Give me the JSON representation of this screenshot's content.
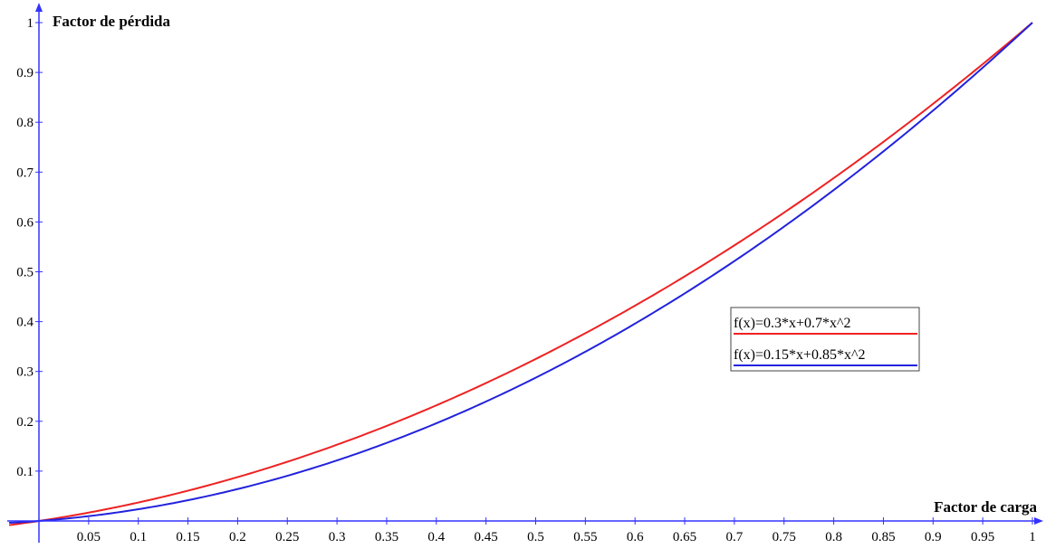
{
  "chart_data": {
    "type": "line",
    "xlabel": "Factor de carga",
    "ylabel": "Factor de pérdida",
    "xlim": [
      0,
      1
    ],
    "ylim": [
      0,
      1
    ],
    "x_ticks": [
      "0.05",
      "0.1",
      "0.15",
      "0.2",
      "0.25",
      "0.3",
      "0.35",
      "0.4",
      "0.45",
      "0.5",
      "0.55",
      "0.6",
      "0.65",
      "0.7",
      "0.75",
      "0.8",
      "0.85",
      "0.9",
      "0.95",
      "1"
    ],
    "y_ticks": [
      "0.1",
      "0.2",
      "0.3",
      "0.4",
      "0.5",
      "0.6",
      "0.7",
      "0.8",
      "0.9",
      "1"
    ],
    "grid": false,
    "legend_position": "center-right",
    "axis_color": "#3333ff",
    "series": [
      {
        "name": "f(x)=0.3*x+0.7*x^2",
        "color": "#ee2222",
        "coefficients": {
          "linear": 0.3,
          "quadratic": 0.7
        },
        "x": [
          0,
          0.1,
          0.2,
          0.3,
          0.4,
          0.5,
          0.6,
          0.7,
          0.8,
          0.9,
          1.0
        ],
        "y": [
          0,
          0.037,
          0.088,
          0.153,
          0.232,
          0.325,
          0.432,
          0.553,
          0.688,
          0.837,
          1.0
        ]
      },
      {
        "name": "f(x)=0.15*x+0.85*x^2",
        "color": "#2222dd",
        "coefficients": {
          "linear": 0.15,
          "quadratic": 0.85
        },
        "x": [
          0,
          0.1,
          0.2,
          0.3,
          0.4,
          0.5,
          0.6,
          0.7,
          0.8,
          0.9,
          1.0
        ],
        "y": [
          0,
          0.0235,
          0.064,
          0.1215,
          0.196,
          0.2875,
          0.396,
          0.5215,
          0.664,
          0.8235,
          1.0
        ]
      }
    ]
  }
}
